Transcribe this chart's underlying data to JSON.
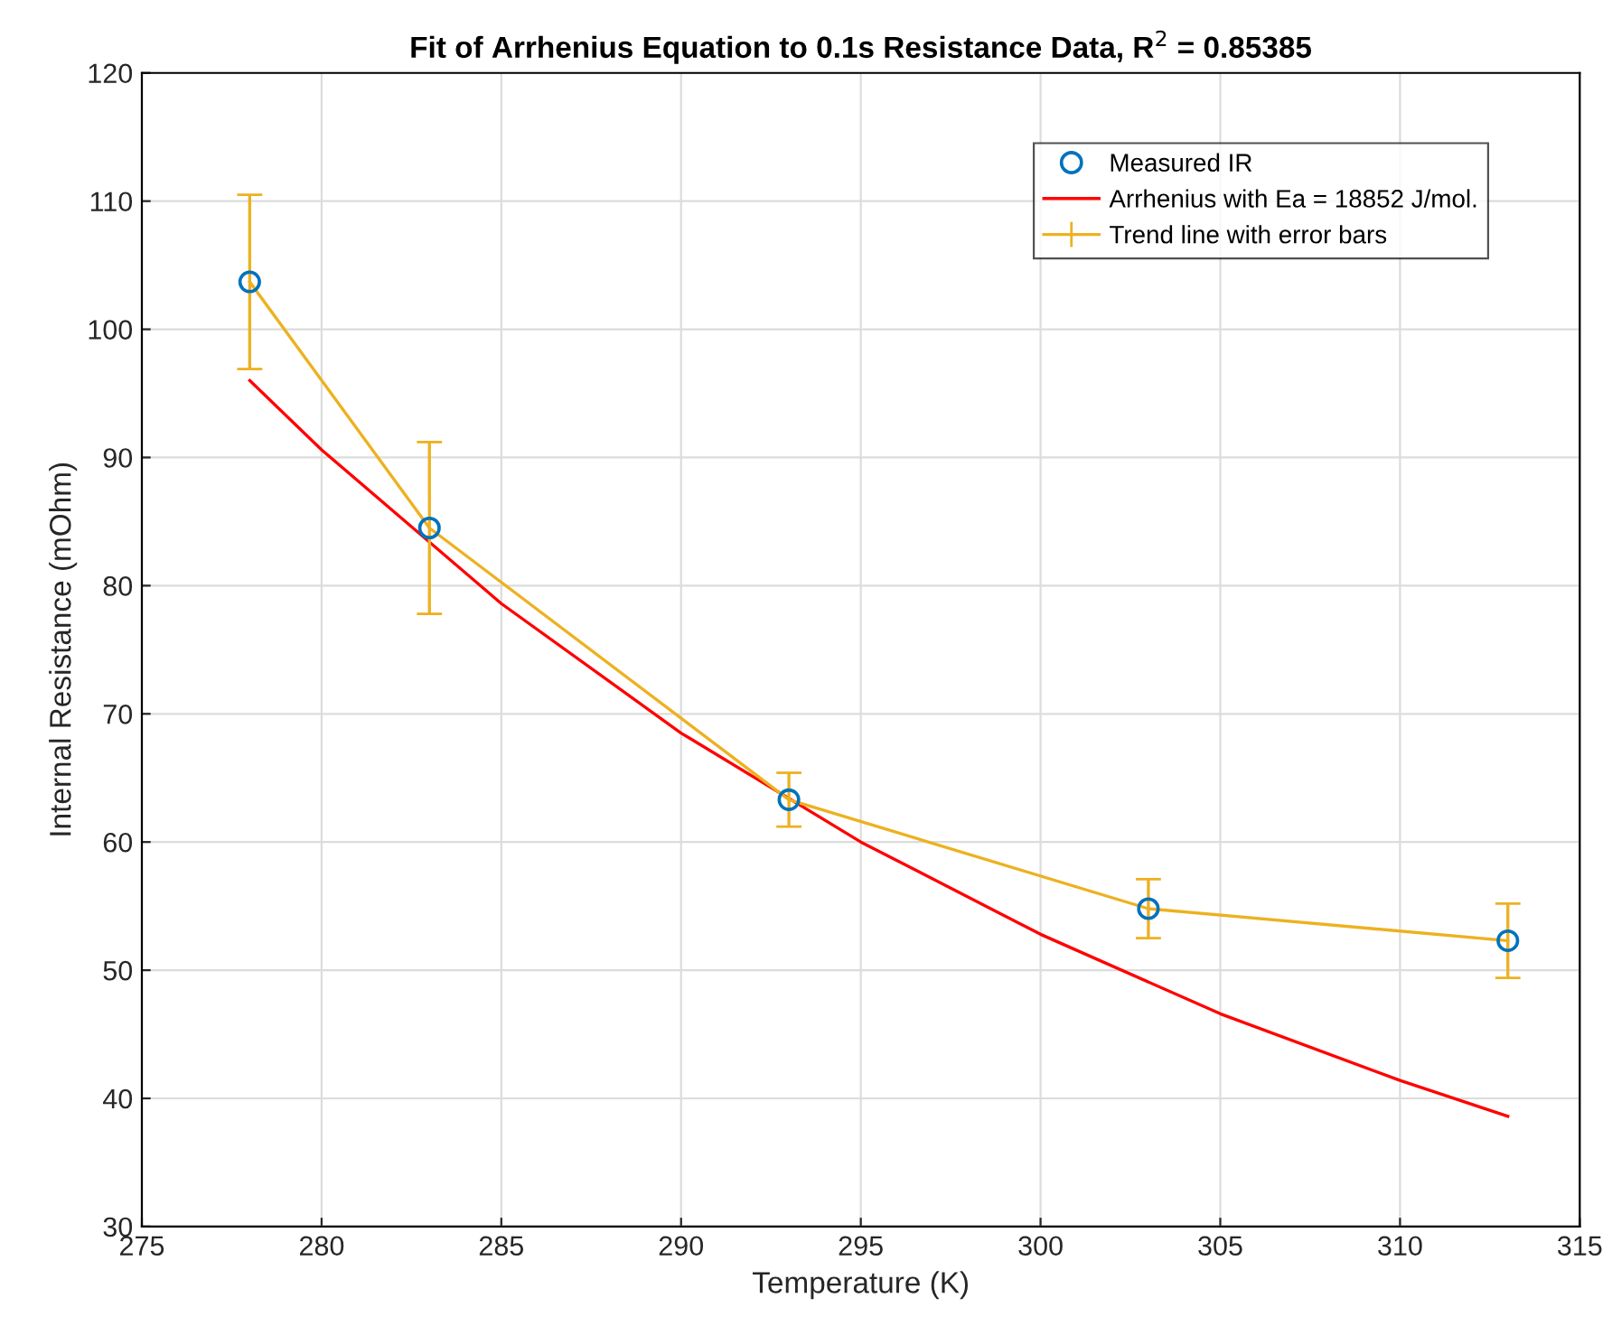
{
  "chart_data": {
    "type": "line",
    "title": "Fit of Arrhenius Equation to 0.1s Resistance Data, R$^{2}$ = 0.85385",
    "xlabel": "Temperature (K)",
    "ylabel": "Internal Resistance (mOhm)",
    "xlim": [
      275,
      315
    ],
    "xticks": [
      275,
      280,
      285,
      290,
      295,
      300,
      305,
      310,
      315
    ],
    "ylim": [
      30,
      120
    ],
    "yticks": [
      30,
      40,
      50,
      60,
      70,
      80,
      90,
      100,
      110,
      120
    ],
    "grid": true,
    "legend": "top right",
    "series": [
      {
        "name": "Measured IR",
        "type": "scatter",
        "marker": "circle",
        "color": "#0072bd",
        "x": [
          278,
          283,
          293,
          303,
          313
        ],
        "values": [
          103.7,
          84.5,
          63.3,
          54.8,
          52.3
        ]
      },
      {
        "name": "Arrhenius with Ea = 18852 J/mol.",
        "color": "#ff0000",
        "x": [
          278,
          280,
          285,
          290,
          295,
          300,
          305,
          310,
          313
        ],
        "values": [
          96,
          90.6,
          78.6,
          68.5,
          60.0,
          52.8,
          46.6,
          41.4,
          38.6
        ]
      },
      {
        "name": "Trend line with error bars",
        "color": "#edb120",
        "x": [
          278,
          283,
          293,
          303,
          313
        ],
        "values": [
          103.7,
          84.5,
          63.3,
          54.8,
          52.3
        ],
        "errors": [
          6.8,
          6.7,
          2.1,
          2.3,
          2.9
        ]
      }
    ]
  }
}
